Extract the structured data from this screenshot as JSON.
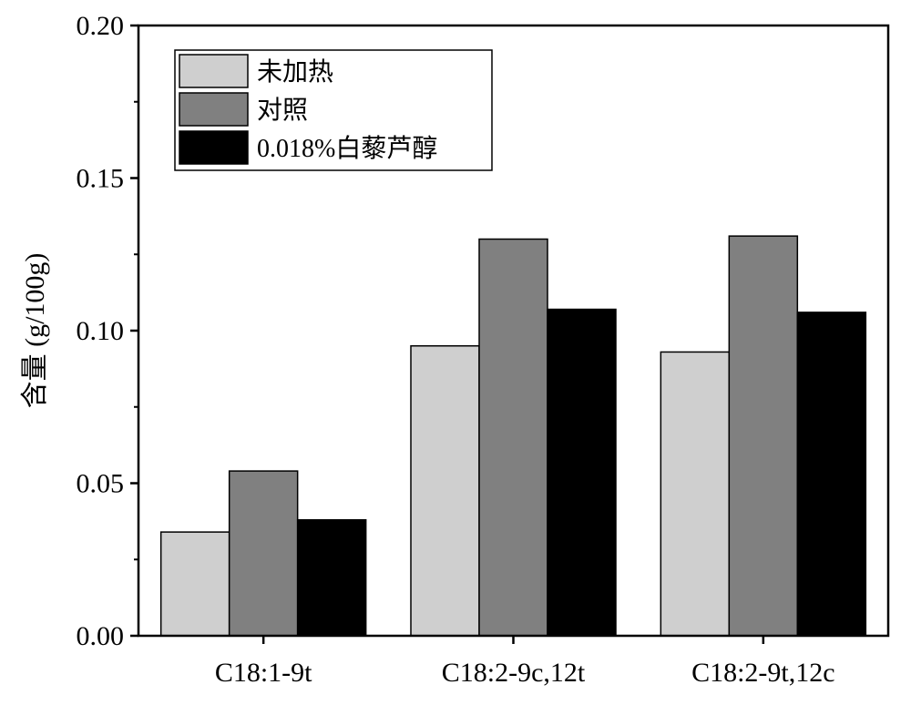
{
  "chart_data": {
    "type": "bar",
    "title": "",
    "xlabel": "",
    "ylabel": "含量 (g/100g)",
    "categories": [
      "C18:1-9t",
      "C18:2-9c,12t",
      "C18:2-9t,12c"
    ],
    "series": [
      {
        "name": "未加热",
        "values": [
          0.034,
          0.095,
          0.093
        ],
        "color": "#cfcfcf"
      },
      {
        "name": "对照",
        "values": [
          0.054,
          0.13,
          0.131
        ],
        "color": "#808080"
      },
      {
        "name": "0.018%白藜芦醇",
        "values": [
          0.038,
          0.107,
          0.106
        ],
        "color": "#000000"
      }
    ],
    "ylim": [
      0,
      0.2
    ],
    "yticks": [
      "0.00",
      "0.05",
      "0.10",
      "0.15",
      "0.20"
    ],
    "grid": false,
    "legend_position": "top-left"
  }
}
